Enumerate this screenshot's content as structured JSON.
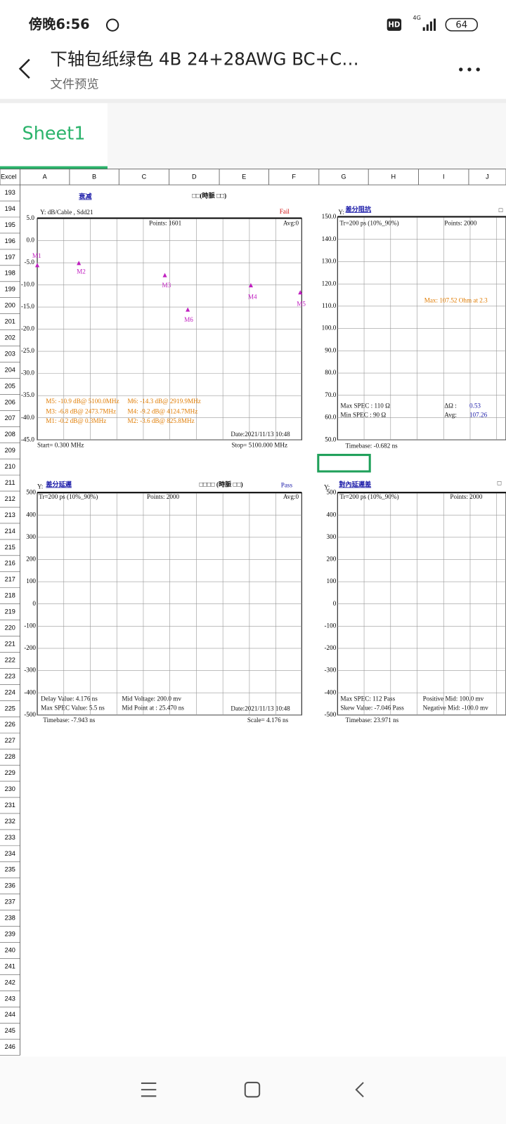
{
  "status_bar": {
    "time": "傍晚6:56",
    "hd": "HD",
    "network": "4G",
    "battery": "64"
  },
  "header": {
    "title": "下轴包纸绿色 4B 24+28AWG BC+C…",
    "subtitle": "文件预览"
  },
  "tabs": [
    "Sheet1"
  ],
  "sheet": {
    "corner": "Excel",
    "columns": [
      "A",
      "B",
      "C",
      "D",
      "E",
      "F",
      "G",
      "H",
      "I",
      "J"
    ],
    "rows": [
      193,
      194,
      195,
      196,
      197,
      198,
      199,
      200,
      201,
      202,
      203,
      204,
      205,
      206,
      207,
      208,
      209,
      210,
      211,
      212,
      213,
      214,
      215,
      216,
      217,
      218,
      219,
      220,
      221,
      222,
      223,
      224,
      225,
      226,
      227,
      228,
      229,
      230,
      231,
      232,
      233,
      234,
      235,
      236,
      237,
      238,
      239,
      240,
      241,
      242,
      243,
      244,
      245,
      246
    ],
    "charts": [
      {
        "title": "衰减",
        "header_text": "□□(時脈 □□)",
        "y_label": "Y: dB/Cable , Sdd21",
        "status": "Fail",
        "points": "Points: 1601",
        "avg": "Avg:0",
        "ylim": [
          -45,
          5
        ],
        "yticks": [
          {
            "value": 5,
            "label": "5.0"
          },
          {
            "value": 0,
            "label": "0.0"
          },
          {
            "value": -5,
            "label": "-5.0"
          },
          {
            "value": -10,
            "label": "-10.0"
          },
          {
            "value": -15,
            "label": "-15.0"
          },
          {
            "value": -20,
            "label": "-20.0"
          },
          {
            "value": -25,
            "label": "-25.0"
          },
          {
            "value": -30,
            "label": "-30.0"
          },
          {
            "value": -35,
            "label": "-35.0"
          },
          {
            "value": -40,
            "label": "-40.0"
          },
          {
            "value": -45,
            "label": "-45.0"
          }
        ],
        "markers": [
          "M1",
          "M2",
          "M3",
          "M4",
          "M5",
          "M6"
        ],
        "notes": [
          "M5: -10.9 dB@ 5100.0MHz",
          "M6: -14.3 dB@ 2919.9MHz",
          "M3: -6.8 dB@ 2473.7MHz",
          "M4: -9.2 dB@ 4124.7MHz",
          "M1: -0.2 dB@ 0.3MHz",
          "M2: -3.6 dB@ 825.8MHz"
        ],
        "date": "Date:2021/11/13 10:48",
        "start": "Start= 0.300 MHz",
        "stop": "Stop= 5100.000 MHz"
      },
      {
        "title": "差分阻抗",
        "header_text": "□",
        "y_label": "Y:",
        "tr": "Tr=200 ps (10%_90%)",
        "points": "Points: 2000",
        "max_note": "Max: 107.52 Ohm at 2.3",
        "ylim": [
          50,
          150
        ],
        "yticks": [
          {
            "value": 150,
            "label": "150.0"
          },
          {
            "value": 140,
            "label": "140.0"
          },
          {
            "value": 130,
            "label": "130.0"
          },
          {
            "value": 120,
            "label": "120.0"
          },
          {
            "value": 110,
            "label": "110.0"
          },
          {
            "value": 100,
            "label": "100.0"
          },
          {
            "value": 90,
            "label": "90.0"
          },
          {
            "value": 80,
            "label": "80.0"
          },
          {
            "value": 70,
            "label": "70.0"
          },
          {
            "value": 60,
            "label": "60.0"
          },
          {
            "value": 50,
            "label": "50.0"
          }
        ],
        "notes": [
          "Max SPEC : 110 Ω",
          "Min SPEC : 90 Ω",
          "ΔΩ :",
          "0.53",
          "Avg:",
          "107.26"
        ],
        "timebase": "Timebase: -0.682 ns"
      },
      {
        "title": "差分延遲",
        "header_text": "□□□□ (時脈 □□)",
        "y_label": "Y:",
        "status": "Pass",
        "tr": "Tr=200 ps (10%_90%)",
        "points": "Points: 2000",
        "avg": "Avg:0",
        "ylim": [
          -500,
          500
        ],
        "yticks": [
          500,
          400,
          300,
          200,
          100,
          0,
          -100,
          -200,
          -300,
          -400,
          -500
        ],
        "notes": [
          "Delay Value: 4.176 ns",
          "Max SPEC Value: 5.5 ns",
          "Mid Voltage: 200.0 mv",
          "Mid Point at : 25.470 ns"
        ],
        "date": "Date:2021/11/13 10:48",
        "timebase": "Timebase: -7.943 ns",
        "scale": "Scale= 4.176 ns"
      },
      {
        "title": "對內延遲差",
        "header_text": "□",
        "y_label": "Y:",
        "tr": "Tr=200 ps (10%_90%)",
        "points": "Points: 2000",
        "ylim": [
          -500,
          500
        ],
        "yticks": [
          500,
          400,
          300,
          200,
          100,
          0,
          -100,
          -200,
          -300,
          -400,
          -500
        ],
        "notes": [
          "Max SPEC: 112 Pass",
          "Skew Value: -7.046 Pass",
          "Positive Mid: 100.0 mv",
          "Negative Mid: -100.0 mv"
        ],
        "timebase": "Timebase: 23.971 ns"
      }
    ]
  }
}
